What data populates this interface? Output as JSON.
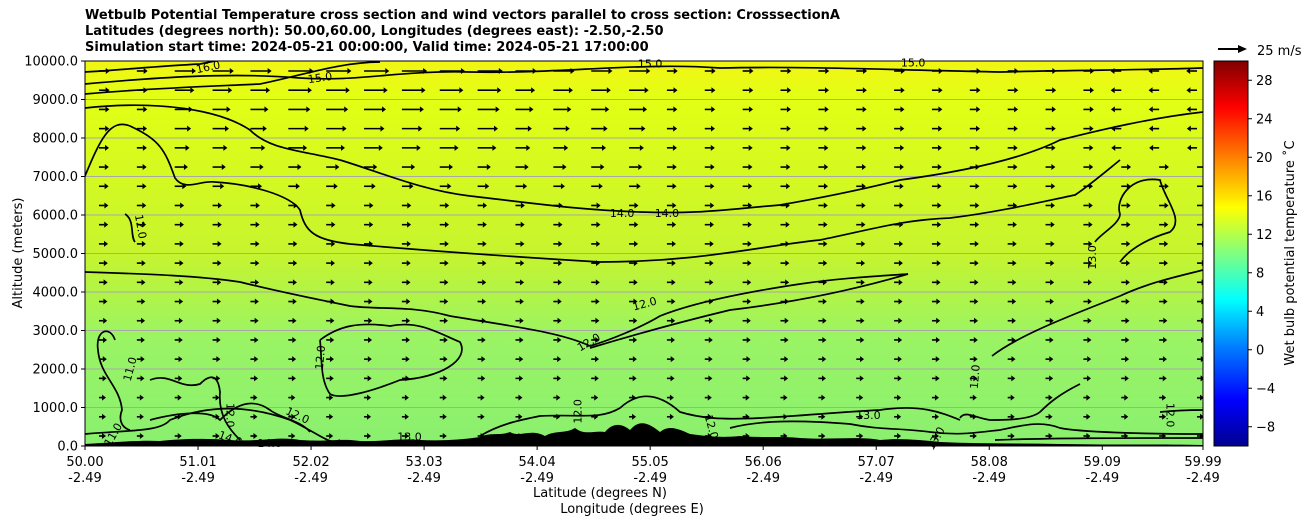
{
  "chart_data": {
    "type": "contour",
    "title_lines": [
      "Wetbulb Potential Temperature cross section and wind vectors parallel to cross section: CrosssectionA",
      "Latitudes (degrees north): 50.00,60.00, Longitudes (degrees east): -2.50,-2.50",
      "Simulation start time: 2024-05-21 00:00:00, Valid time: 2024-05-21 17:00:00"
    ],
    "xlabel_lat": "Latitude (degrees N)",
    "xlabel_lon": "Longitude (degrees E)",
    "ylabel": "Altitude (meters)",
    "ylim": [
      0,
      10000
    ],
    "yticks": [
      "0.0",
      "1000.0",
      "2000.0",
      "3000.0",
      "4000.0",
      "5000.0",
      "6000.0",
      "7000.0",
      "8000.0",
      "9000.0",
      "10000.0"
    ],
    "xticks_lat": [
      "50.00",
      "51.01",
      "52.02",
      "53.03",
      "54.04",
      "55.05",
      "56.06",
      "57.07",
      "58.08",
      "59.09",
      "59.99"
    ],
    "xticks_lon": [
      "-2.49",
      "-2.49",
      "-2.49",
      "-2.49",
      "-2.49",
      "-2.49",
      "-2.49",
      "-2.49",
      "-2.49",
      "-2.49",
      "-2.49"
    ],
    "grid": "horizontal",
    "colorbar": {
      "label": "Wet bulb potential temperature ˚C",
      "ticks": [
        "−8",
        "−4",
        "0",
        "4",
        "8",
        "12",
        "16",
        "20",
        "24",
        "28"
      ],
      "range": [
        -10,
        30
      ]
    },
    "quiver_key": "25 m/s",
    "contour_labels": [
      {
        "text": "16.0",
        "lat": 51.1,
        "alt": 9850,
        "angle": -12
      },
      {
        "text": "15.0",
        "lat": 52.1,
        "alt": 9570,
        "angle": -8
      },
      {
        "text": "15.0",
        "lat": 55.05,
        "alt": 9940,
        "angle": 0
      },
      {
        "text": "15.0",
        "lat": 57.4,
        "alt": 9960,
        "angle": 0
      },
      {
        "text": "14.0",
        "lat": 54.8,
        "alt": 6050,
        "angle": 0
      },
      {
        "text": "14.0",
        "lat": 55.2,
        "alt": 6050,
        "angle": 0
      },
      {
        "text": "13.0",
        "lat": 59.0,
        "alt": 4900,
        "angle": -90
      },
      {
        "text": "12.0",
        "lat": 50.5,
        "alt": 5700,
        "angle": 80
      },
      {
        "text": "12.0",
        "lat": 55.0,
        "alt": 3700,
        "angle": -15
      },
      {
        "text": "12.0",
        "lat": 54.5,
        "alt": 2700,
        "angle": -30
      },
      {
        "text": "12.0",
        "lat": 52.1,
        "alt": 2300,
        "angle": -85
      },
      {
        "text": "12.0",
        "lat": 57.95,
        "alt": 1800,
        "angle": -85
      },
      {
        "text": "12.0",
        "lat": 51.3,
        "alt": 800,
        "angle": 90
      },
      {
        "text": "12.0",
        "lat": 51.9,
        "alt": 800,
        "angle": 25
      },
      {
        "text": "12.0",
        "lat": 55.6,
        "alt": 500,
        "angle": 75
      },
      {
        "text": "12.0",
        "lat": 59.7,
        "alt": 800,
        "angle": 90
      },
      {
        "text": "12.0",
        "lat": 54.4,
        "alt": 900,
        "angle": -90
      },
      {
        "text": "11.0",
        "lat": 50.4,
        "alt": 2000,
        "angle": -75
      },
      {
        "text": "11.0",
        "lat": 50.25,
        "alt": 300,
        "angle": -60
      },
      {
        "text": "13.0",
        "lat": 52.9,
        "alt": 250,
        "angle": 0
      },
      {
        "text": "13.0",
        "lat": 57.0,
        "alt": 800,
        "angle": 0
      },
      {
        "text": "13.0",
        "lat": 57.6,
        "alt": 200,
        "angle": -60
      },
      {
        "text": "14.0",
        "lat": 51.3,
        "alt": 200,
        "angle": 20
      },
      {
        "text": "14.0",
        "lat": 51.65,
        "alt": 80,
        "angle": 0
      }
    ]
  },
  "colors": {
    "background_field": "#c8f22a",
    "upper_field": "#e2ff14",
    "lower_field": "#8af26b",
    "contour": "#000000",
    "terrain": "#000000"
  }
}
